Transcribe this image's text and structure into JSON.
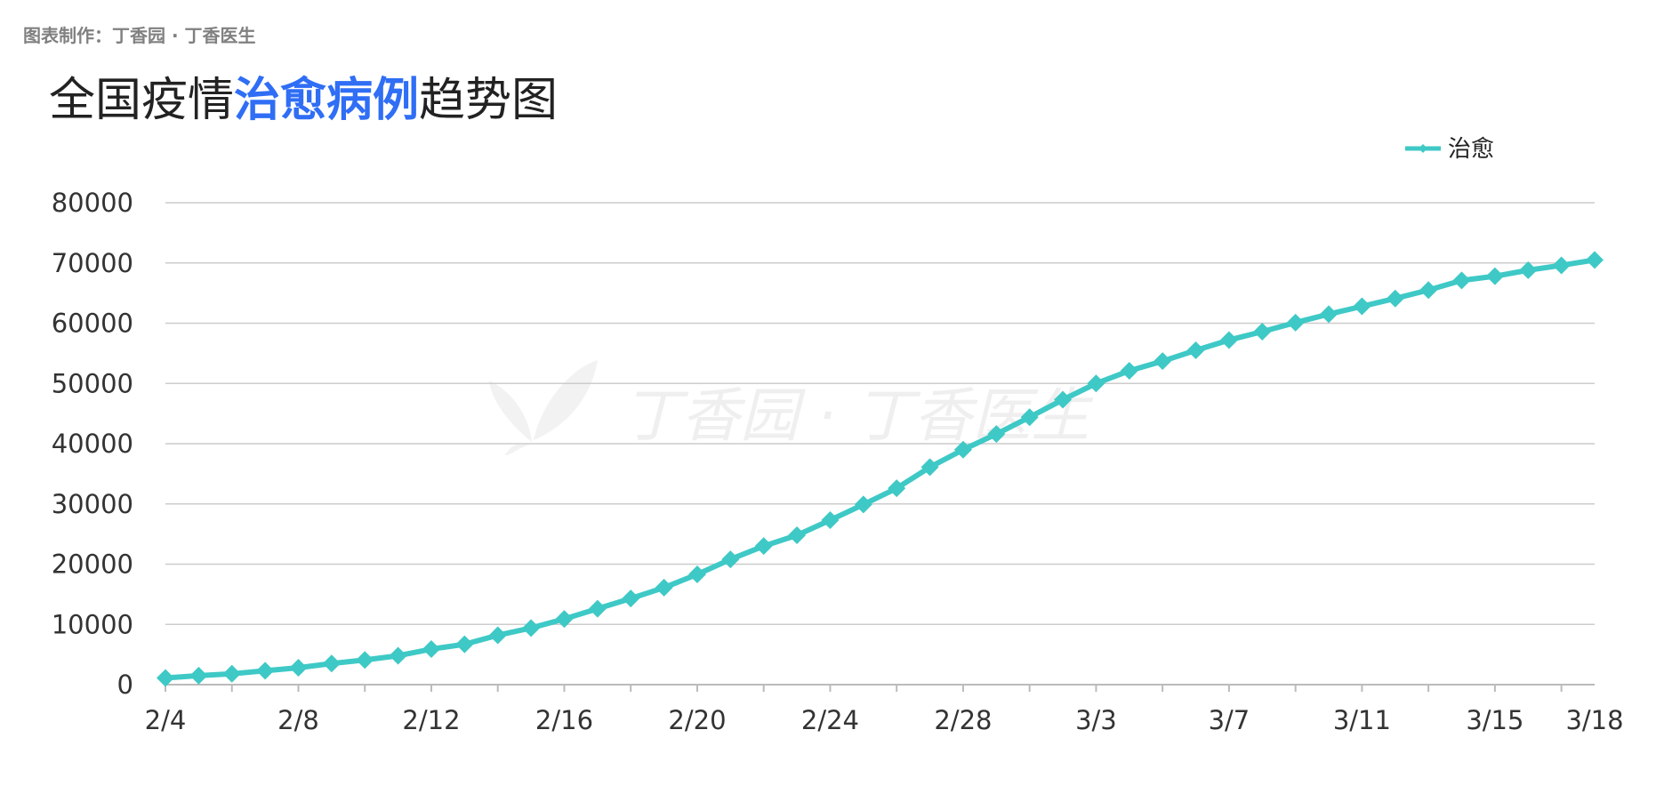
{
  "credit": "图表制作：丁香园 · 丁香医生",
  "title": {
    "part1": "全国疫情",
    "highlight": "治愈病例",
    "part2": "趋势图"
  },
  "watermark": {
    "text": "丁香园 · 丁香医生"
  },
  "colors": {
    "series": "#3ec9c6",
    "highlight": "#2f6ef5",
    "grid": "#cccccc"
  },
  "chart_data": {
    "type": "line",
    "grid": true,
    "legend_position": "top-right",
    "ylim": [
      0,
      80000
    ],
    "yticks": [
      0,
      10000,
      20000,
      30000,
      40000,
      50000,
      60000,
      70000,
      80000
    ],
    "x_tick_labels": [
      {
        "i": 0,
        "label": "2/4"
      },
      {
        "i": 4,
        "label": "2/8"
      },
      {
        "i": 8,
        "label": "2/12"
      },
      {
        "i": 12,
        "label": "2/16"
      },
      {
        "i": 16,
        "label": "2/20"
      },
      {
        "i": 20,
        "label": "2/24"
      },
      {
        "i": 24,
        "label": "2/28"
      },
      {
        "i": 28,
        "label": "3/3"
      },
      {
        "i": 32,
        "label": "3/7"
      },
      {
        "i": 36,
        "label": "3/11"
      },
      {
        "i": 40,
        "label": "3/15"
      },
      {
        "i": 43,
        "label": "3/18"
      }
    ],
    "x": [
      "2/4",
      "2/5",
      "2/6",
      "2/7",
      "2/8",
      "2/9",
      "2/10",
      "2/11",
      "2/12",
      "2/13",
      "2/14",
      "2/15",
      "2/16",
      "2/17",
      "2/18",
      "2/19",
      "2/20",
      "2/21",
      "2/22",
      "2/23",
      "2/24",
      "2/25",
      "2/26",
      "2/27",
      "2/28",
      "2/29",
      "3/1",
      "3/2",
      "3/3",
      "3/4",
      "3/5",
      "3/6",
      "3/7",
      "3/8",
      "3/9",
      "3/10",
      "3/11",
      "3/12",
      "3/13",
      "3/14",
      "3/15",
      "3/16",
      "3/17",
      "3/18"
    ],
    "series": [
      {
        "name": "治愈",
        "values": [
          1100,
          1500,
          1800,
          2300,
          2800,
          3500,
          4100,
          4800,
          5900,
          6700,
          8200,
          9400,
          10900,
          12600,
          14300,
          16100,
          18300,
          20800,
          23000,
          24800,
          27300,
          29900,
          32600,
          36100,
          39000,
          41600,
          44400,
          47300,
          50000,
          52100,
          53700,
          55500,
          57200,
          58600,
          60100,
          61500,
          62800,
          64100,
          65500,
          67100,
          67800,
          68800,
          69600,
          70500
        ]
      }
    ]
  }
}
